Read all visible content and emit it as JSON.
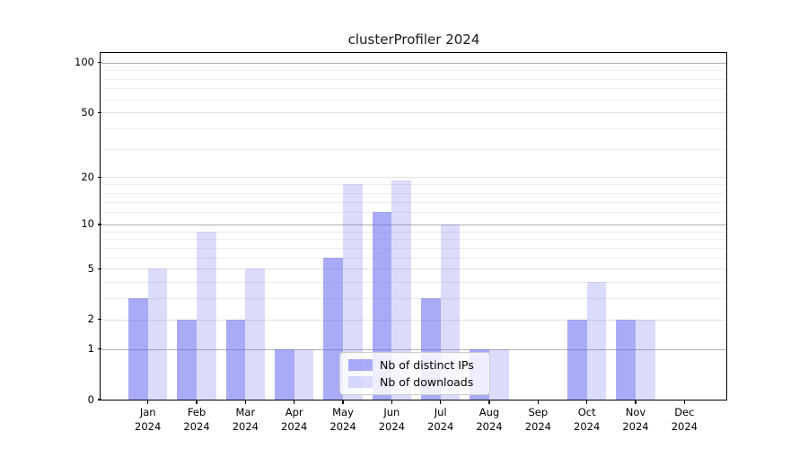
{
  "chart_data": {
    "type": "bar",
    "title": "clusterProfiler 2024",
    "categories": [
      "Jan 2024",
      "Feb 2024",
      "Mar 2024",
      "Apr 2024",
      "May 2024",
      "Jun 2024",
      "Jul 2024",
      "Aug 2024",
      "Sep 2024",
      "Oct 2024",
      "Nov 2024",
      "Dec 2024"
    ],
    "category_month_labels": [
      "Jan",
      "Feb",
      "Mar",
      "Apr",
      "May",
      "Jun",
      "Jul",
      "Aug",
      "Sep",
      "Oct",
      "Nov",
      "Dec"
    ],
    "category_year_label": "2024",
    "series": [
      {
        "name": "Nb of distinct IPs",
        "values": [
          3,
          2,
          2,
          1,
          6,
          12,
          3,
          1,
          0,
          2,
          2,
          0
        ],
        "color": "#6466f0",
        "alpha": 0.55
      },
      {
        "name": "Nb of downloads",
        "values": [
          5,
          9,
          5,
          1,
          18,
          19,
          10,
          1,
          0,
          4,
          2,
          0
        ],
        "color": "#6466f0",
        "alpha": 0.23
      }
    ],
    "xlabel": "",
    "ylabel": "",
    "yscale": "log1p",
    "ylim": [
      0,
      100
    ],
    "y_tick_values": [
      0,
      1,
      2,
      5,
      10,
      20,
      50,
      100
    ],
    "y_tick_labels": [
      "0",
      "1",
      "2",
      "5",
      "10",
      "20",
      "50",
      "100"
    ],
    "y_decade_gridlines": [
      1,
      10,
      100
    ],
    "y_minor_gridlines": [
      3,
      4,
      6,
      7,
      8,
      9,
      12,
      14,
      16,
      18,
      30,
      40,
      60,
      70,
      80,
      90
    ],
    "grid": "on",
    "legend": {
      "position": "lower-center-inside"
    },
    "colors": {
      "axis": "#000000",
      "text": "#1a1a1a",
      "background": "#ffffff",
      "grid_decade": "#b0b0b0",
      "grid_major": "#e2e2e2",
      "grid_minor": "#ededed",
      "bar_ips_on_white": "#a9aaf6",
      "bar_downloads_on_white": "#dcdcfa"
    }
  }
}
